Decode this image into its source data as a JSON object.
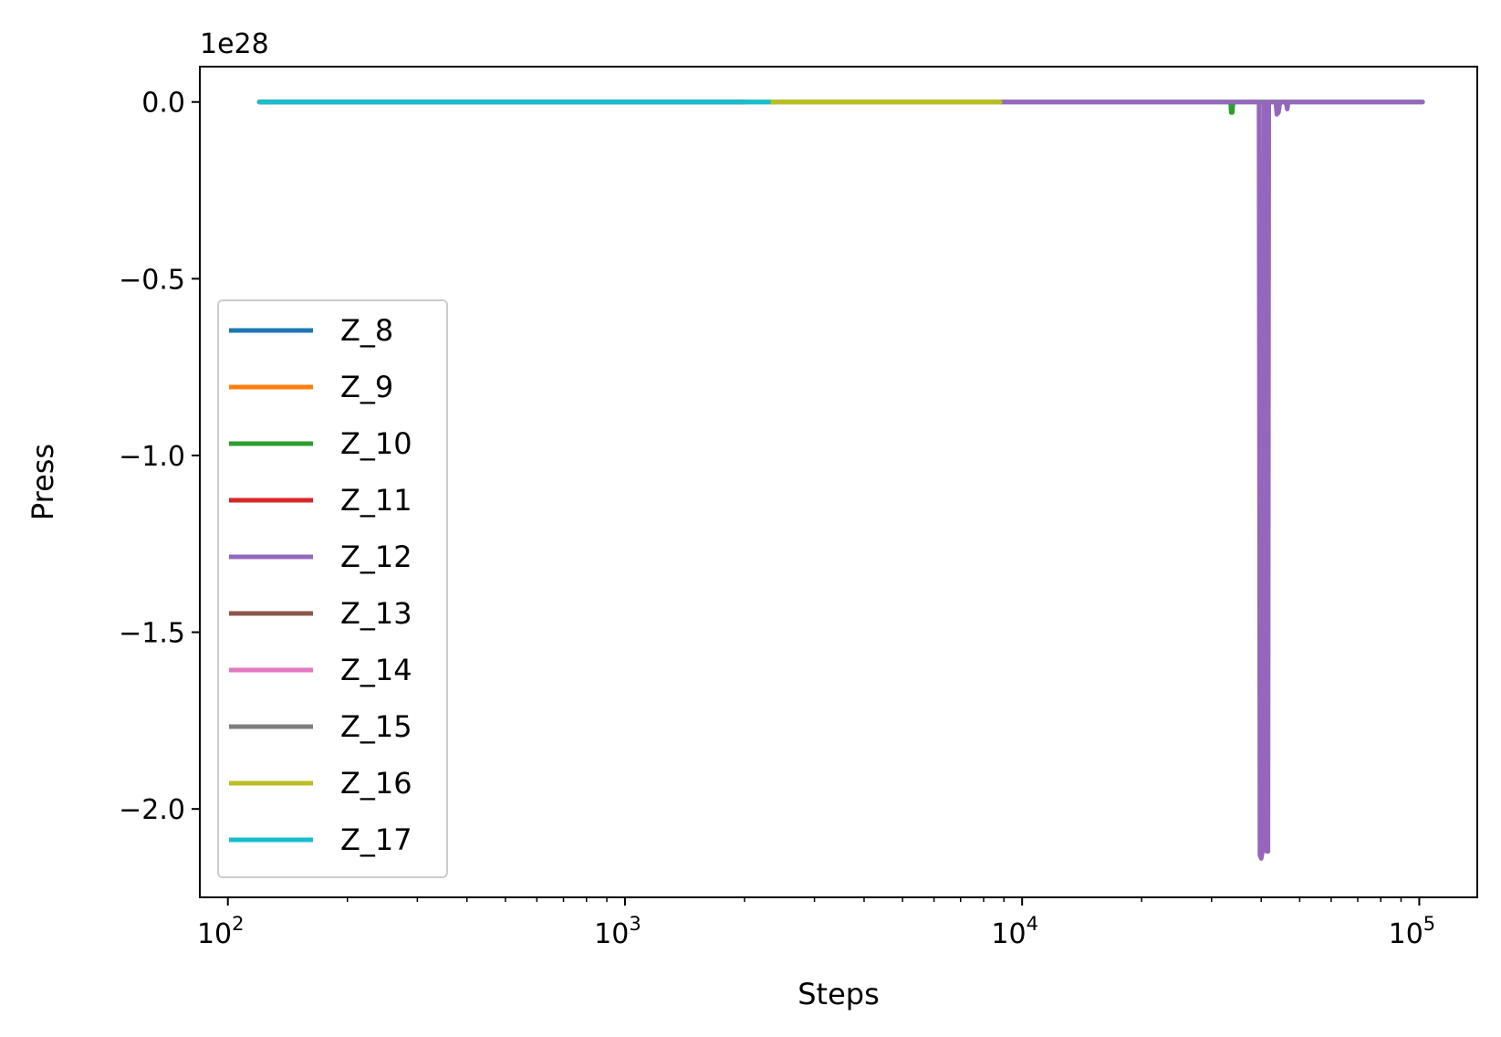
{
  "chart_data": {
    "type": "line",
    "title": "",
    "xlabel": "Steps",
    "ylabel": "Press",
    "xscale": "log",
    "xlim": [
      85,
      140000
    ],
    "ylim": [
      -2.25,
      0.1
    ],
    "y_offset_text": "1e28",
    "y_multiplier": 1e+28,
    "x_ticks": [
      {
        "value": 100,
        "base": "10",
        "exp": "2"
      },
      {
        "value": 1000,
        "base": "10",
        "exp": "3"
      },
      {
        "value": 10000,
        "base": "10",
        "exp": "4"
      },
      {
        "value": 100000,
        "base": "10",
        "exp": "5"
      }
    ],
    "y_ticks": [
      {
        "value": 0.0,
        "label": "0.0"
      },
      {
        "value": -0.5,
        "label": "−0.5"
      },
      {
        "value": -1.0,
        "label": "−1.0"
      },
      {
        "value": -1.5,
        "label": "−1.5"
      },
      {
        "value": -2.0,
        "label": "−2.0"
      }
    ],
    "grid": false,
    "legend_position": "lower-left",
    "series": [
      {
        "name": "Z_8",
        "color": "#1f77b4",
        "points": [
          [
            120,
            0
          ],
          [
            1400,
            0
          ]
        ]
      },
      {
        "name": "Z_9",
        "color": "#ff7f0e",
        "points": [
          [
            120,
            0
          ],
          [
            1400,
            0
          ]
        ]
      },
      {
        "name": "Z_10",
        "color": "#2ca02c",
        "points": [
          [
            120,
            0
          ],
          [
            30000,
            0
          ],
          [
            33500,
            0
          ],
          [
            33600,
            -0.03
          ],
          [
            33800,
            -0.03
          ],
          [
            34000,
            0
          ],
          [
            102000,
            0
          ]
        ]
      },
      {
        "name": "Z_11",
        "color": "#d62728",
        "points": [
          [
            120,
            0
          ],
          [
            2000,
            0
          ]
        ]
      },
      {
        "name": "Z_12",
        "color": "#9467bd",
        "points": [
          [
            8800,
            0
          ],
          [
            39500,
            0
          ],
          [
            39700,
            -2.13
          ],
          [
            40000,
            -2.14
          ],
          [
            40300,
            -2.12
          ],
          [
            40600,
            0
          ],
          [
            41000,
            0
          ],
          [
            41300,
            -2.12
          ],
          [
            41600,
            -2.12
          ],
          [
            41800,
            0
          ],
          [
            43500,
            0
          ],
          [
            43800,
            -0.035
          ],
          [
            44200,
            -0.03
          ],
          [
            44600,
            0
          ],
          [
            46200,
            0
          ],
          [
            46500,
            -0.02
          ],
          [
            46800,
            0
          ],
          [
            102000,
            0
          ]
        ]
      },
      {
        "name": "Z_13",
        "color": "#8c564b",
        "points": [
          [
            120,
            0
          ],
          [
            2000,
            0
          ]
        ]
      },
      {
        "name": "Z_14",
        "color": "#e377c2",
        "points": [
          [
            120,
            0
          ],
          [
            2000,
            0
          ]
        ]
      },
      {
        "name": "Z_15",
        "color": "#7f7f7f",
        "points": [
          [
            120,
            0
          ],
          [
            2000,
            0
          ]
        ]
      },
      {
        "name": "Z_16",
        "color": "#bcbd22",
        "points": [
          [
            2300,
            0
          ],
          [
            8800,
            0
          ]
        ]
      },
      {
        "name": "Z_17",
        "color": "#17becf",
        "points": [
          [
            120,
            0
          ],
          [
            2300,
            0
          ]
        ]
      }
    ]
  }
}
